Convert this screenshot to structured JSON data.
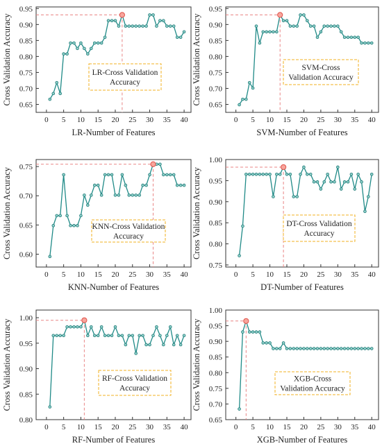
{
  "chart_data": [
    {
      "type": "line",
      "xlabel": "LR-Number of Features",
      "ylabel": "Cross Validation Accuracy",
      "legend_lines": [
        "LR-Cross Validation",
        "Accuracy"
      ],
      "xlim": [
        -3,
        42
      ],
      "ylim": [
        0.625,
        0.955
      ],
      "xticks": [
        0,
        5,
        10,
        15,
        20,
        25,
        30,
        35,
        40
      ],
      "yticks": [
        0.65,
        0.7,
        0.75,
        0.8,
        0.85,
        0.9,
        0.95
      ],
      "ytick_labels": [
        "0.65",
        "0.70",
        "0.75",
        "0.80",
        "0.85",
        "0.90",
        "0.95"
      ],
      "x": [
        1,
        2,
        3,
        4,
        5,
        6,
        7,
        8,
        9,
        10,
        11,
        12,
        13,
        14,
        15,
        16,
        17,
        18,
        19,
        20,
        21,
        22,
        23,
        24,
        25,
        26,
        27,
        28,
        29,
        30,
        31,
        32,
        33,
        34,
        35,
        36,
        37,
        38,
        39,
        40
      ],
      "y": [
        0.666,
        0.684,
        0.718,
        0.684,
        0.808,
        0.808,
        0.842,
        0.842,
        0.825,
        0.842,
        0.825,
        0.808,
        0.825,
        0.842,
        0.842,
        0.842,
        0.86,
        0.912,
        0.912,
        0.912,
        0.895,
        0.93,
        0.895,
        0.895,
        0.895,
        0.895,
        0.895,
        0.895,
        0.895,
        0.93,
        0.93,
        0.895,
        0.912,
        0.912,
        0.895,
        0.895,
        0.895,
        0.86,
        0.86,
        0.877
      ],
      "best": {
        "x": 22,
        "y": 0.93
      },
      "legend_placement": "center-right",
      "grid": false
    },
    {
      "type": "line",
      "xlabel": "SVM-Number of Features",
      "ylabel": "Cross Validation Accuracy",
      "legend_lines": [
        "SVM-Cross",
        "Validation Accuracy"
      ],
      "xlim": [
        -3,
        42
      ],
      "ylim": [
        0.625,
        0.955
      ],
      "xticks": [
        0,
        5,
        10,
        15,
        20,
        25,
        30,
        35,
        40
      ],
      "yticks": [
        0.65,
        0.7,
        0.75,
        0.8,
        0.85,
        0.9,
        0.95
      ],
      "ytick_labels": [
        "0.65",
        "0.70",
        "0.75",
        "0.80",
        "0.85",
        "0.90",
        "0.95"
      ],
      "x": [
        1,
        2,
        3,
        4,
        5,
        6,
        7,
        8,
        9,
        10,
        11,
        12,
        13,
        14,
        15,
        16,
        17,
        18,
        19,
        20,
        21,
        22,
        23,
        24,
        25,
        26,
        27,
        28,
        29,
        30,
        31,
        32,
        33,
        34,
        35,
        36,
        37,
        38,
        39,
        40
      ],
      "y": [
        0.649,
        0.666,
        0.666,
        0.718,
        0.701,
        0.895,
        0.842,
        0.877,
        0.877,
        0.877,
        0.877,
        0.877,
        0.93,
        0.912,
        0.912,
        0.895,
        0.895,
        0.895,
        0.93,
        0.93,
        0.912,
        0.895,
        0.895,
        0.86,
        0.877,
        0.895,
        0.895,
        0.895,
        0.895,
        0.895,
        0.877,
        0.86,
        0.86,
        0.86,
        0.86,
        0.86,
        0.842,
        0.842,
        0.842,
        0.842
      ],
      "best": {
        "x": 13,
        "y": 0.93
      },
      "legend_placement": "bottom-right",
      "grid": false
    },
    {
      "type": "line",
      "xlabel": "KNN-Number of Features",
      "ylabel": "Cross Validation Accuracy",
      "legend_lines": [
        "KNN-Cross Validation",
        "Accuracy"
      ],
      "xlim": [
        -3,
        42
      ],
      "ylim": [
        0.578,
        0.762
      ],
      "xticks": [
        0,
        5,
        10,
        15,
        20,
        25,
        30,
        35,
        40
      ],
      "yticks": [
        0.6,
        0.65,
        0.7,
        0.75
      ],
      "ytick_labels": [
        "0.60",
        "0.65",
        "0.70",
        "0.75"
      ],
      "x": [
        1,
        2,
        3,
        4,
        5,
        6,
        7,
        8,
        9,
        10,
        11,
        12,
        13,
        14,
        15,
        16,
        17,
        18,
        19,
        20,
        21,
        22,
        23,
        24,
        25,
        26,
        27,
        28,
        29,
        30,
        31,
        32,
        33,
        34,
        35,
        36,
        37,
        38,
        39,
        40
      ],
      "y": [
        0.596,
        0.649,
        0.666,
        0.666,
        0.736,
        0.666,
        0.649,
        0.649,
        0.649,
        0.666,
        0.701,
        0.684,
        0.701,
        0.718,
        0.718,
        0.701,
        0.736,
        0.736,
        0.736,
        0.701,
        0.701,
        0.736,
        0.718,
        0.701,
        0.701,
        0.701,
        0.701,
        0.718,
        0.718,
        0.736,
        0.754,
        0.754,
        0.754,
        0.736,
        0.736,
        0.736,
        0.736,
        0.718,
        0.718,
        0.718
      ],
      "best": {
        "x": 31,
        "y": 0.754
      },
      "legend_placement": "bottom-right",
      "grid": false
    },
    {
      "type": "line",
      "xlabel": "DT-Number of Features",
      "ylabel": "Cross Validation Accuracy",
      "legend_lines": [
        "DT-Cross Validation",
        "Accuracy"
      ],
      "xlim": [
        -3,
        42
      ],
      "ylim": [
        0.745,
        1.0
      ],
      "xticks": [
        0,
        5,
        10,
        15,
        20,
        25,
        30,
        35,
        40
      ],
      "yticks": [
        0.75,
        0.8,
        0.85,
        0.9,
        0.95,
        1.0
      ],
      "ytick_labels": [
        "0.75",
        "0.80",
        "0.85",
        "0.90",
        "0.95",
        "1.00"
      ],
      "x": [
        1,
        2,
        3,
        4,
        5,
        6,
        7,
        8,
        9,
        10,
        11,
        12,
        13,
        14,
        15,
        16,
        17,
        18,
        19,
        20,
        21,
        22,
        23,
        24,
        25,
        26,
        27,
        28,
        29,
        30,
        31,
        32,
        33,
        34,
        35,
        36,
        37,
        38,
        39,
        40
      ],
      "y": [
        0.772,
        0.842,
        0.965,
        0.965,
        0.965,
        0.965,
        0.965,
        0.965,
        0.965,
        0.965,
        0.912,
        0.965,
        0.965,
        0.982,
        0.965,
        0.965,
        0.912,
        0.912,
        0.965,
        0.982,
        0.965,
        0.965,
        0.947,
        0.947,
        0.93,
        0.947,
        0.965,
        0.947,
        0.947,
        0.982,
        0.93,
        0.947,
        0.947,
        0.965,
        0.93,
        0.965,
        0.947,
        0.877,
        0.912,
        0.965
      ],
      "best": {
        "x": 14,
        "y": 0.982
      },
      "legend_placement": "bottom-right",
      "grid": false
    },
    {
      "type": "line",
      "xlabel": "RF-Number of Features",
      "ylabel": "Cross Validation Accuracy",
      "legend_lines": [
        "RF-Cross Validation",
        "Accuracy"
      ],
      "xlim": [
        -3,
        42
      ],
      "ylim": [
        0.8,
        1.015
      ],
      "xticks": [
        0,
        5,
        10,
        15,
        20,
        25,
        30,
        35,
        40
      ],
      "yticks": [
        0.8,
        0.85,
        0.9,
        0.95,
        1.0
      ],
      "ytick_labels": [
        "0.80",
        "0.85",
        "0.90",
        "0.95",
        "1.00"
      ],
      "x": [
        1,
        2,
        3,
        4,
        5,
        6,
        7,
        8,
        9,
        10,
        11,
        12,
        13,
        14,
        15,
        16,
        17,
        18,
        19,
        20,
        21,
        22,
        23,
        24,
        25,
        26,
        27,
        28,
        29,
        30,
        31,
        32,
        33,
        34,
        35,
        36,
        37,
        38,
        39,
        40
      ],
      "y": [
        0.825,
        0.965,
        0.965,
        0.965,
        0.965,
        0.982,
        0.982,
        0.982,
        0.982,
        0.982,
        0.995,
        0.965,
        0.982,
        0.965,
        0.965,
        0.982,
        0.965,
        0.965,
        0.965,
        0.982,
        0.965,
        0.965,
        0.947,
        0.965,
        0.965,
        0.93,
        0.965,
        0.965,
        0.947,
        0.947,
        0.965,
        0.982,
        0.965,
        0.947,
        0.965,
        0.982,
        0.947,
        0.965,
        0.947,
        0.965
      ],
      "best": {
        "x": 11,
        "y": 0.995
      },
      "legend_placement": "bottom-right",
      "grid": false
    },
    {
      "type": "line",
      "xlabel": "XGB-Number of Features",
      "ylabel": "Cross Validation Accuracy",
      "legend_lines": [
        "XGB-Cross",
        "Validation Accuracy"
      ],
      "xlim": [
        -3,
        42
      ],
      "ylim": [
        0.65,
        1.0
      ],
      "xticks": [
        0,
        5,
        10,
        15,
        20,
        25,
        30,
        35,
        40
      ],
      "yticks": [
        0.65,
        0.7,
        0.75,
        0.8,
        0.85,
        0.9,
        0.95,
        1.0
      ],
      "ytick_labels": [
        "0.65",
        "0.70",
        "0.75",
        "0.80",
        "0.85",
        "0.90",
        "0.95",
        "1.00"
      ],
      "x": [
        1,
        2,
        3,
        4,
        5,
        6,
        7,
        8,
        9,
        10,
        11,
        12,
        13,
        14,
        15,
        16,
        17,
        18,
        19,
        20,
        21,
        22,
        23,
        24,
        25,
        26,
        27,
        28,
        29,
        30,
        31,
        32,
        33,
        34,
        35,
        36,
        37,
        38,
        39,
        40
      ],
      "y": [
        0.684,
        0.93,
        0.965,
        0.93,
        0.93,
        0.93,
        0.93,
        0.895,
        0.895,
        0.895,
        0.877,
        0.877,
        0.877,
        0.895,
        0.877,
        0.877,
        0.877,
        0.877,
        0.877,
        0.877,
        0.877,
        0.877,
        0.877,
        0.877,
        0.877,
        0.877,
        0.877,
        0.877,
        0.877,
        0.877,
        0.877,
        0.877,
        0.877,
        0.877,
        0.877,
        0.877,
        0.877,
        0.877,
        0.877,
        0.877
      ],
      "best": {
        "x": 3,
        "y": 0.965
      },
      "legend_placement": "bottom-right",
      "grid": false
    }
  ],
  "colors": {
    "line": "#1f8a87",
    "marker_fill": "#8fd0ca",
    "marker_edge": "#1f7a77",
    "best_marker_fill": "#f7a59c",
    "best_marker_edge": "#e0524a",
    "reference_line": "#e98585",
    "legend_border": "#f0b021",
    "axis": "#333333"
  }
}
